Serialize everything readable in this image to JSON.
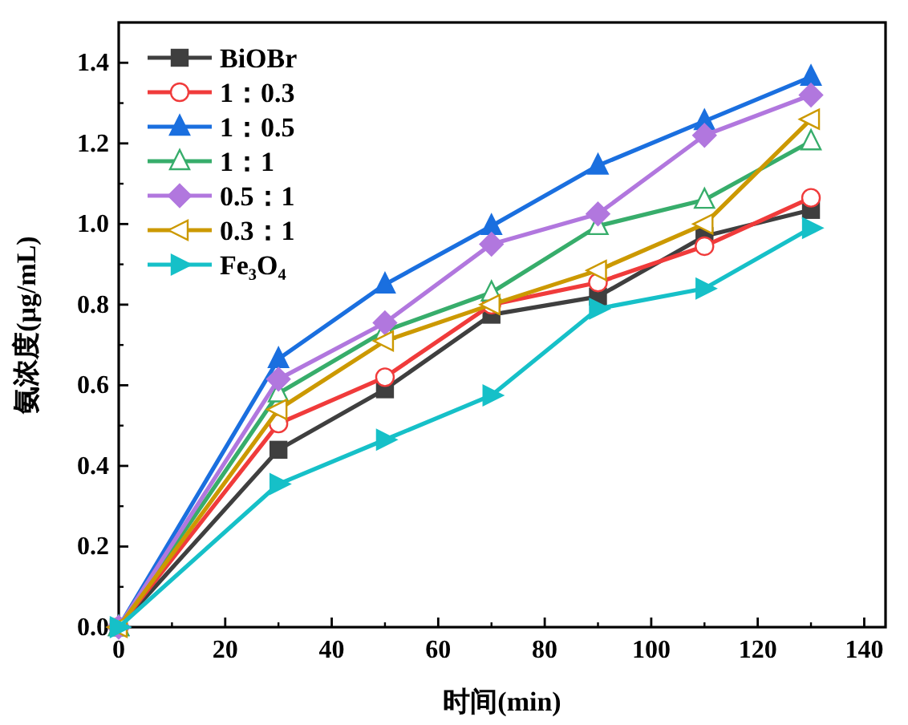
{
  "chart_data": {
    "type": "line",
    "xlabel": "时间(min)",
    "ylabel": "氨浓度(μg/mL)",
    "x": [
      0,
      30,
      50,
      70,
      90,
      110,
      130
    ],
    "xlim": [
      0,
      144
    ],
    "xticks": [
      0,
      20,
      40,
      60,
      80,
      100,
      120,
      140
    ],
    "ylim": [
      0,
      1.5
    ],
    "yticks": [
      {
        "value": 0,
        "label": "0.0"
      },
      0.2,
      0.4,
      0.6,
      0.8,
      {
        "value": 1,
        "label": "1.0"
      },
      1.2,
      1.4
    ],
    "grid": false,
    "legend": "top left",
    "series": [
      {
        "name": "BiOBr",
        "color": "#3f3f3f",
        "marker": "square",
        "values": [
          0,
          0.44,
          0.59,
          0.775,
          0.82,
          0.97,
          1.035
        ]
      },
      {
        "name": "1：0.3",
        "color": "#f03b3b",
        "marker": "circle-open",
        "values": [
          0,
          0.505,
          0.62,
          0.8,
          0.855,
          0.945,
          1.065
        ]
      },
      {
        "name": "1：0.5",
        "color": "#1a6fdf",
        "marker": "triangle",
        "values": [
          0,
          0.665,
          0.85,
          0.995,
          1.145,
          1.255,
          1.365
        ]
      },
      {
        "name": "1：1",
        "color": "#37ad6b",
        "marker": "triangle-open",
        "values": [
          0,
          0.58,
          0.735,
          0.83,
          0.995,
          1.06,
          1.205
        ]
      },
      {
        "name": "0.5：1",
        "color": "#b177de",
        "marker": "diamond",
        "values": [
          0,
          0.615,
          0.755,
          0.95,
          1.025,
          1.22,
          1.32
        ]
      },
      {
        "name": "0.3：1",
        "color": "#cc9900",
        "marker": "triangle-left-open",
        "values": [
          0,
          0.54,
          0.71,
          0.8,
          0.885,
          1.0,
          1.26
        ]
      },
      {
        "name": "Fe₃O₄",
        "color": "#16c0c8",
        "marker": "triangle-right",
        "values": [
          0,
          0.355,
          0.465,
          0.575,
          0.79,
          0.84,
          0.99
        ]
      }
    ]
  }
}
